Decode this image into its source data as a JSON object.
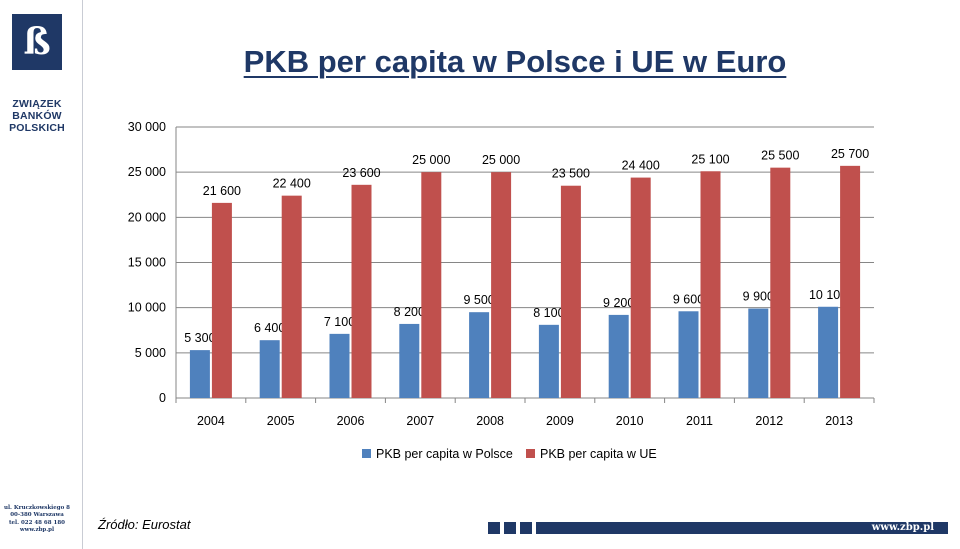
{
  "sidebar": {
    "logo_letter": "ß",
    "org_name_lines": [
      "ZWIĄZEK",
      "BANKÓW",
      "POLSKICH"
    ],
    "address_lines": [
      "ul. Kruczkowskiego 8",
      "00-380 Warszawa",
      "tel. 022 48 68 180",
      "www.zbp.pl"
    ]
  },
  "title": "PKB per capita w Polsce i UE w Euro",
  "source": "Źródło: Eurostat",
  "footer_url": "www.zbp.pl",
  "colors": {
    "poland": "#4f81bd",
    "eu": "#c0504d",
    "brand": "#1f3866",
    "grid": "#868686"
  },
  "chart_data": {
    "type": "bar",
    "title": "",
    "xlabel": "",
    "ylabel": "",
    "categories": [
      "2004",
      "2005",
      "2006",
      "2007",
      "2008",
      "2009",
      "2010",
      "2011",
      "2012",
      "2013"
    ],
    "ylim": [
      0,
      30000
    ],
    "yticks": [
      0,
      5000,
      10000,
      15000,
      20000,
      25000,
      30000
    ],
    "ytick_labels": [
      "0",
      "5 000",
      "10 000",
      "15 000",
      "20 000",
      "25 000",
      "30 000"
    ],
    "grid": true,
    "legend_position": "bottom",
    "series": [
      {
        "name": "PKB per capita w Polsce",
        "values": [
          5300,
          6400,
          7100,
          8200,
          9500,
          8100,
          9200,
          9600,
          9900,
          10100
        ],
        "labels": [
          "5 300",
          "6 400",
          "7 100",
          "8 200",
          "9 500",
          "8 100",
          "9 200",
          "9 600",
          "9 900",
          "10 100"
        ]
      },
      {
        "name": "PKB per capita w UE",
        "values": [
          21600,
          22400,
          23600,
          25000,
          25000,
          23500,
          24400,
          25100,
          25500,
          25700
        ],
        "labels": [
          "21 600",
          "22 400",
          "23 600",
          "25 000",
          "25 000",
          "23 500",
          "24 400",
          "25 100",
          "25 500",
          "25 700"
        ]
      }
    ]
  }
}
